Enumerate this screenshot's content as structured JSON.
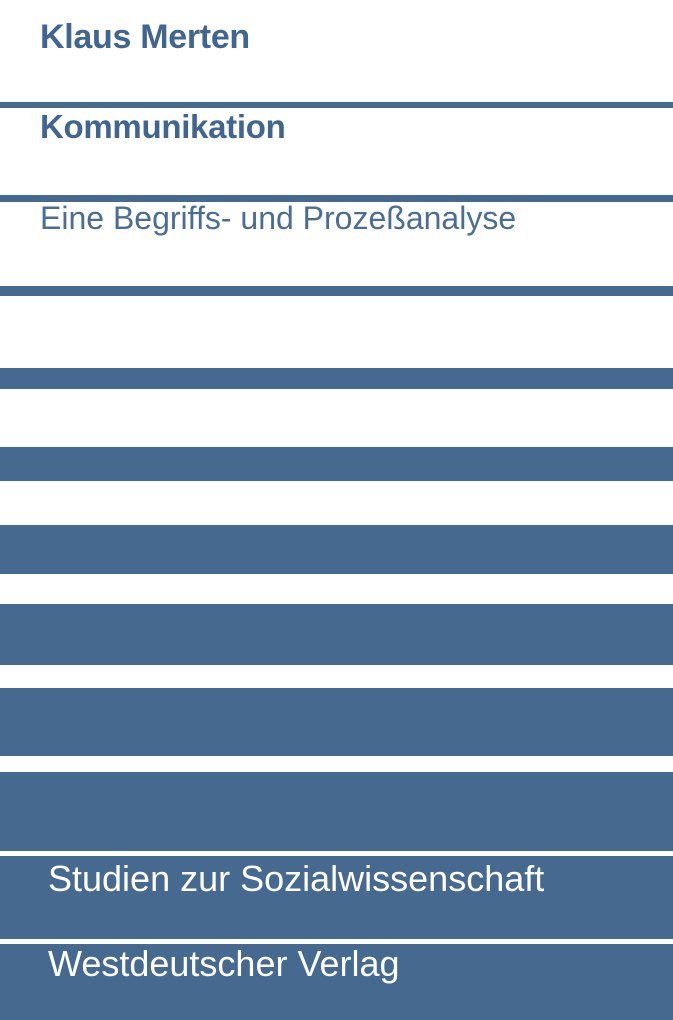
{
  "author": "Klaus Merten",
  "title": "Kommunikation",
  "subtitle": "Eine Begriffs- und Prozeßanalyse",
  "series": "Studien zur Sozialwissenschaft",
  "publisher": "Westdeutscher Verlag",
  "colors": {
    "accent": "#46698f",
    "background": "#ffffff",
    "text_light": "#ffffff"
  }
}
